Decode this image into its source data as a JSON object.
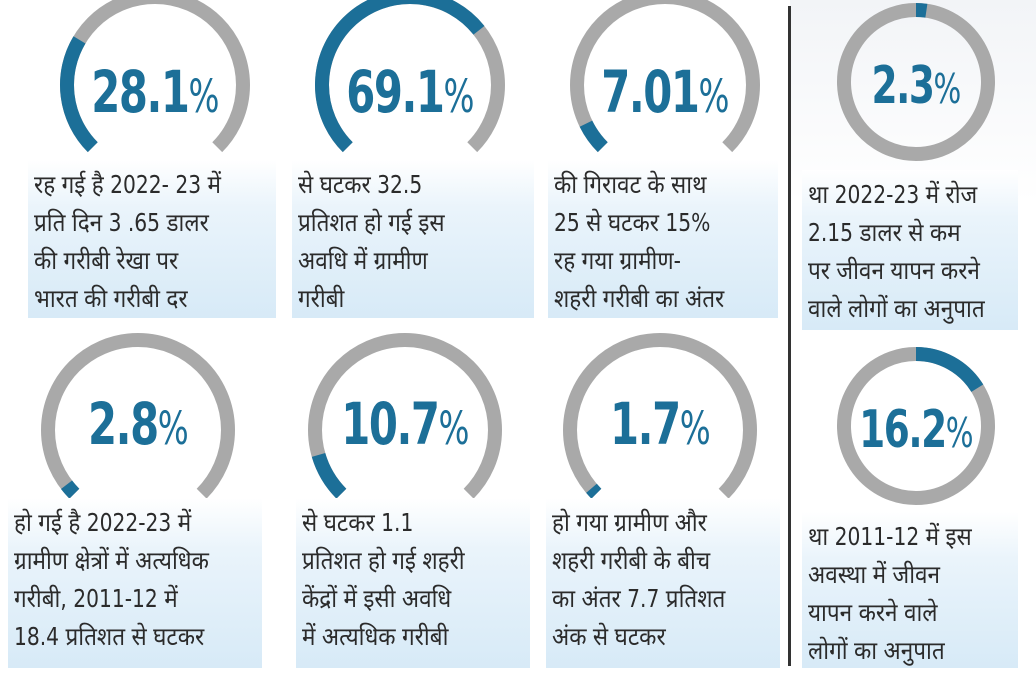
{
  "colors": {
    "accent": "#1c6f98",
    "track": "#a9a9a9",
    "text": "#2b2b2b",
    "box_bottom": "#d7eaf7"
  },
  "chart_data": [
    {
      "type": "gauge",
      "value": 28.1,
      "label": "28.1",
      "unit": "%",
      "style": "open-arc",
      "description": [
        "रह गई है 2022- 23 में",
        "प्रति दिन 3 .65 डालर",
        "की गरीबी रेखा पर",
        "भारत की गरीबी दर"
      ]
    },
    {
      "type": "gauge",
      "value": 69.1,
      "label": "69.1",
      "unit": "%",
      "style": "open-arc",
      "description": [
        "से घटकर 32.5",
        "प्रतिशत हो गई इस",
        "अवधि में ग्रामीण",
        "गरीबी"
      ]
    },
    {
      "type": "gauge",
      "value": 7.01,
      "label": "7.01",
      "unit": "%",
      "style": "open-arc",
      "description": [
        "की गिरावट के साथ",
        "25 से घटकर 15%",
        "रह गया ग्रामीण-",
        "शहरी गरीबी का अंतर"
      ]
    },
    {
      "type": "donut",
      "value": 2.3,
      "label": "2.3",
      "unit": "%",
      "style": "full-ring",
      "description": [
        "था 2022-23 में रोज",
        "2.15 डालर से कम",
        "पर जीवन यापन करने",
        "वाले लोगों का अनुपात"
      ]
    },
    {
      "type": "gauge",
      "value": 2.8,
      "label": "2.8",
      "unit": "%",
      "style": "open-arc",
      "description": [
        "हो गई है 2022-23 में",
        "ग्रामीण क्षेत्रों में अत्यधिक",
        "गरीबी, 2011-12 में",
        "18.4 प्रतिशत से घटकर"
      ]
    },
    {
      "type": "gauge",
      "value": 10.7,
      "label": "10.7",
      "unit": "%",
      "style": "open-arc",
      "description": [
        "से घटकर 1.1",
        "प्रतिशत हो गई शहरी",
        "केंद्रों में इसी अवधि",
        "में अत्यधिक गरीबी"
      ]
    },
    {
      "type": "gauge",
      "value": 1.7,
      "label": "1.7",
      "unit": "%",
      "style": "open-arc",
      "description": [
        "हो गया ग्रामीण और",
        "शहरी गरीबी के बीच",
        "का अंतर 7.7 प्रतिशत",
        "अंक से घटकर"
      ]
    },
    {
      "type": "donut",
      "value": 16.2,
      "label": "16.2",
      "unit": "%",
      "style": "full-ring",
      "description": [
        "था 2011-12 में इस",
        "अवस्था में जीवन",
        "यापन करने वाले",
        "लोगों का अनुपात"
      ]
    }
  ]
}
